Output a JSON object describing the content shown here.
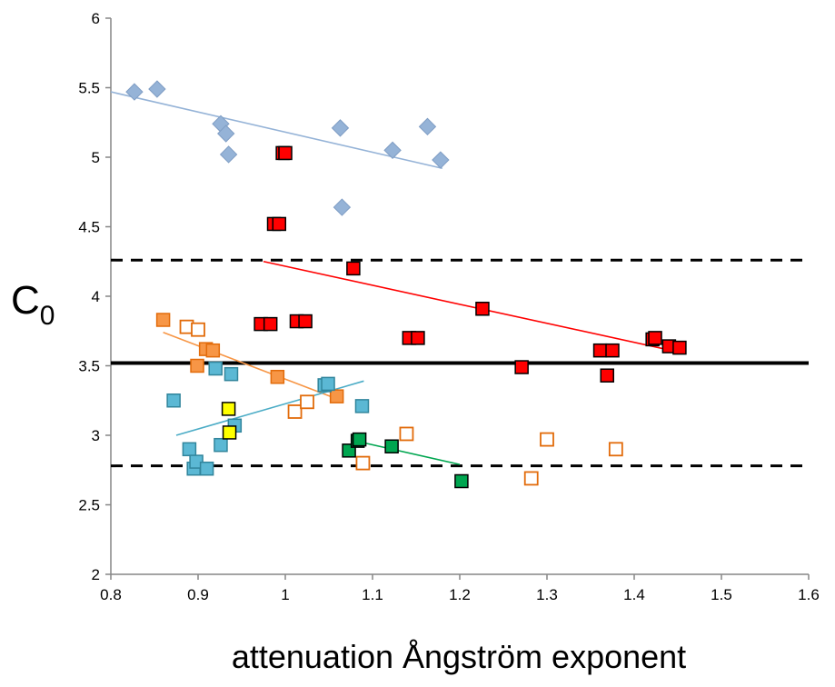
{
  "chart_data": {
    "type": "scatter",
    "xlabel": "attenuation Ångström exponent",
    "ylabel": "C",
    "ylabel_subscript": "0",
    "xlim": [
      0.8,
      1.6
    ],
    "ylim": [
      2,
      6
    ],
    "x_ticks": [
      "0.8",
      "0.9",
      "1",
      "1.1",
      "1.2",
      "1.3",
      "1.4",
      "1.5",
      "1.6"
    ],
    "y_ticks": [
      "2",
      "2.5",
      "3",
      "3.5",
      "4",
      "4.5",
      "5",
      "5.5",
      "6"
    ],
    "grid": false,
    "reference_lines": [
      {
        "y": 4.26,
        "style": "dashed",
        "color": "#000000"
      },
      {
        "y": 3.52,
        "style": "solid",
        "color": "#000000"
      },
      {
        "y": 2.78,
        "style": "dashed",
        "color": "#000000"
      }
    ],
    "series": [
      {
        "marker": "diamond",
        "color": "#95B3D7",
        "edge": "#7F9DC4",
        "filled": true,
        "points": [
          [
            0.827,
            5.47
          ],
          [
            0.853,
            5.49
          ],
          [
            0.926,
            5.24
          ],
          [
            0.932,
            5.17
          ],
          [
            0.935,
            5.02
          ],
          [
            1.063,
            5.21
          ],
          [
            1.065,
            4.64
          ],
          [
            1.123,
            5.05
          ],
          [
            1.163,
            5.22
          ],
          [
            1.178,
            4.98
          ]
        ],
        "trend": {
          "x": [
            0.8,
            1.18
          ],
          "y": [
            5.47,
            4.92
          ],
          "color": "#95B3D7"
        }
      },
      {
        "marker": "square",
        "color": "#FF0000",
        "edge": "#000000",
        "filled": true,
        "points": [
          [
            0.997,
            5.03
          ],
          [
            1.0,
            5.03
          ],
          [
            0.987,
            4.52
          ],
          [
            0.993,
            4.52
          ],
          [
            1.078,
            4.2
          ],
          [
            0.972,
            3.8
          ],
          [
            0.983,
            3.8
          ],
          [
            1.013,
            3.82
          ],
          [
            1.023,
            3.82
          ],
          [
            1.142,
            3.7
          ],
          [
            1.152,
            3.7
          ],
          [
            1.226,
            3.91
          ],
          [
            1.271,
            3.49
          ],
          [
            1.361,
            3.61
          ],
          [
            1.375,
            3.61
          ],
          [
            1.369,
            3.43
          ],
          [
            1.421,
            3.69
          ],
          [
            1.424,
            3.7
          ],
          [
            1.44,
            3.64
          ],
          [
            1.452,
            3.63
          ]
        ],
        "trend": {
          "x": [
            0.975,
            1.45
          ],
          "y": [
            4.25,
            3.6
          ],
          "color": "#FF0000"
        }
      },
      {
        "marker": "square",
        "color": "#F79646",
        "edge": "#E26B0A",
        "filled": true,
        "points": [
          [
            0.86,
            3.83
          ],
          [
            0.909,
            3.62
          ],
          [
            0.917,
            3.61
          ],
          [
            0.899,
            3.5
          ],
          [
            0.991,
            3.42
          ],
          [
            1.059,
            3.28
          ]
        ],
        "trend": {
          "x": [
            0.86,
            1.06
          ],
          "y": [
            3.74,
            3.26
          ],
          "color": "#F79646"
        }
      },
      {
        "marker": "square",
        "color": "#FFFFFF",
        "edge": "#E26B0A",
        "filled": false,
        "points": [
          [
            0.887,
            3.78
          ],
          [
            0.9,
            3.76
          ],
          [
            1.011,
            3.17
          ],
          [
            1.025,
            3.24
          ],
          [
            1.089,
            2.8
          ],
          [
            1.139,
            3.01
          ],
          [
            1.282,
            2.69
          ],
          [
            1.3,
            2.97
          ],
          [
            1.379,
            2.9
          ]
        ]
      },
      {
        "marker": "square",
        "color": "#5BB8D4",
        "edge": "#31859C",
        "filled": true,
        "points": [
          [
            0.872,
            3.25
          ],
          [
            0.92,
            3.48
          ],
          [
            0.938,
            3.44
          ],
          [
            0.942,
            3.07
          ],
          [
            0.926,
            2.93
          ],
          [
            0.89,
            2.9
          ],
          [
            0.895,
            2.76
          ],
          [
            0.898,
            2.81
          ],
          [
            0.91,
            2.76
          ],
          [
            1.045,
            3.36
          ],
          [
            1.049,
            3.37
          ],
          [
            1.088,
            3.21
          ]
        ],
        "trend": {
          "x": [
            0.875,
            1.09
          ],
          "y": [
            3.0,
            3.39
          ],
          "color": "#4BACC6"
        }
      },
      {
        "marker": "square",
        "color": "#FFFF00",
        "edge": "#000000",
        "filled": true,
        "points": [
          [
            0.935,
            3.19
          ],
          [
            0.936,
            3.02
          ]
        ]
      },
      {
        "marker": "square",
        "color": "#00A650",
        "edge": "#000000",
        "filled": true,
        "points": [
          [
            1.073,
            2.89
          ],
          [
            1.083,
            2.96
          ],
          [
            1.085,
            2.97
          ],
          [
            1.122,
            2.92
          ],
          [
            1.202,
            2.67
          ]
        ],
        "trend": {
          "x": [
            1.08,
            1.2
          ],
          "y": [
            2.96,
            2.79
          ],
          "color": "#00A650"
        }
      }
    ]
  }
}
